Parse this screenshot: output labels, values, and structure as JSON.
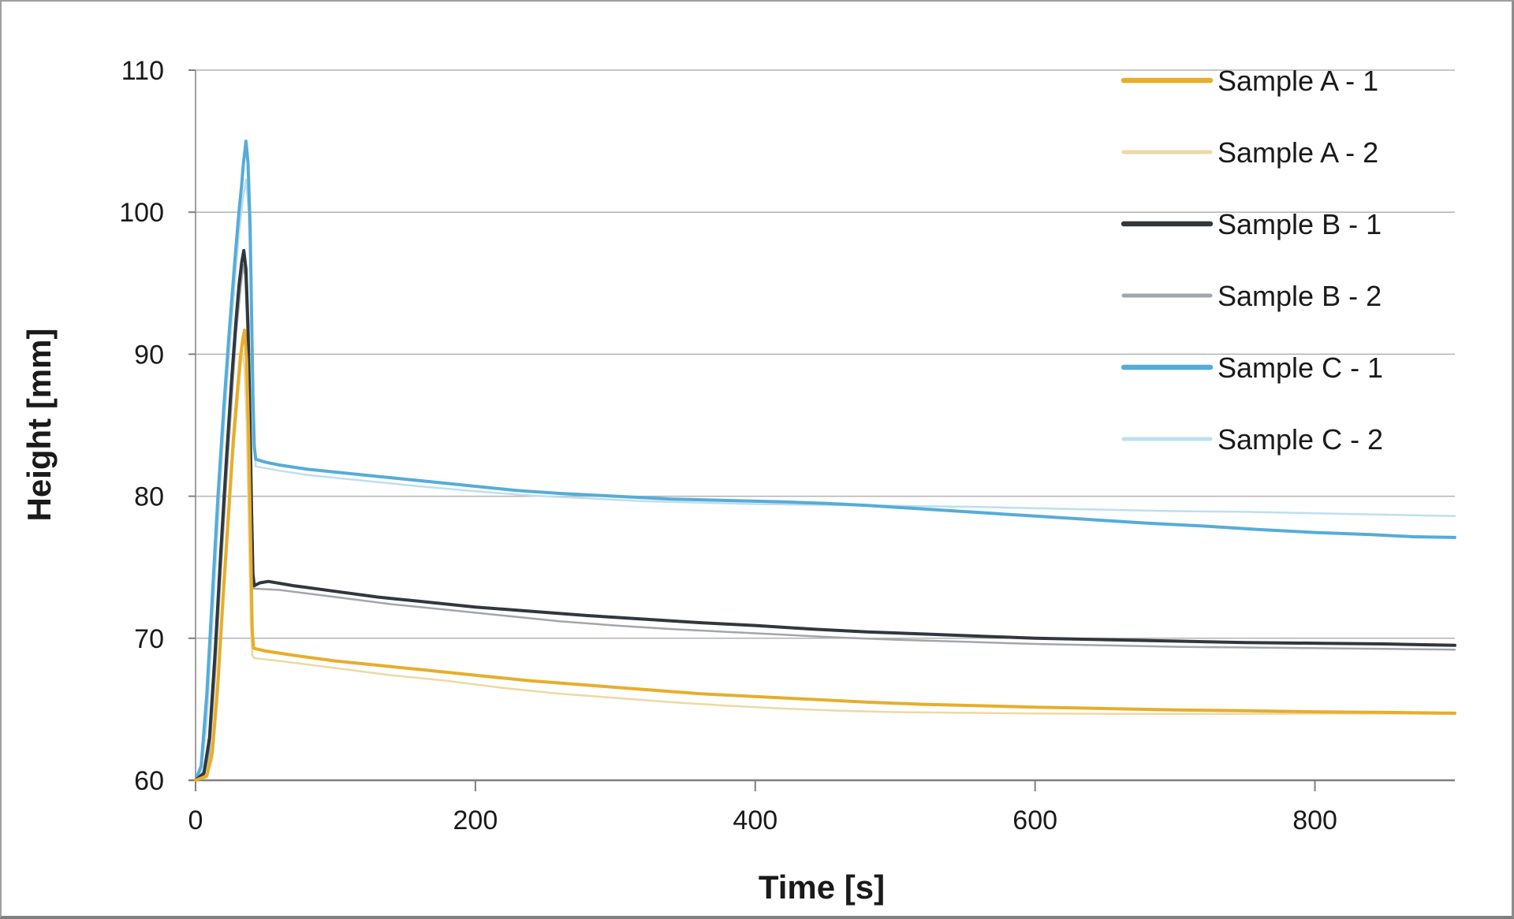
{
  "chart_data": {
    "type": "line",
    "title": "",
    "xlabel": "Time [s]",
    "ylabel": "Height [mm]",
    "xlim": [
      0,
      900
    ],
    "ylim": [
      60,
      110
    ],
    "xticks": [
      0,
      200,
      400,
      600,
      800
    ],
    "yticks": [
      60,
      70,
      80,
      90,
      100,
      110
    ],
    "grid": "horizontal",
    "legend_position": "top-right",
    "colors": {
      "gridline": "#b3b3b3",
      "axis_line": "#7f7f7f",
      "y_axis_line": "#a0a0a0",
      "text": "#1a1a1a"
    },
    "series": [
      {
        "name": "Sample A - 1",
        "color": "#e6ae2c",
        "width": 4,
        "points": [
          [
            0,
            60
          ],
          [
            8,
            60.3
          ],
          [
            12,
            62
          ],
          [
            16,
            67
          ],
          [
            20,
            73.5
          ],
          [
            24,
            79.5
          ],
          [
            27,
            84
          ],
          [
            30,
            87.5
          ],
          [
            32,
            89.8
          ],
          [
            34,
            91.2
          ],
          [
            35,
            91.7
          ],
          [
            36.5,
            89.5
          ],
          [
            38,
            84
          ],
          [
            39.5,
            76
          ],
          [
            40.5,
            70.5
          ],
          [
            41.5,
            69.3
          ],
          [
            50,
            69.1
          ],
          [
            70,
            68.8
          ],
          [
            100,
            68.4
          ],
          [
            130,
            68.1
          ],
          [
            160,
            67.8
          ],
          [
            200,
            67.4
          ],
          [
            240,
            67
          ],
          [
            280,
            66.7
          ],
          [
            320,
            66.4
          ],
          [
            360,
            66.1
          ],
          [
            400,
            65.9
          ],
          [
            440,
            65.7
          ],
          [
            480,
            65.5
          ],
          [
            520,
            65.35
          ],
          [
            560,
            65.25
          ],
          [
            600,
            65.15
          ],
          [
            650,
            65.05
          ],
          [
            700,
            64.95
          ],
          [
            750,
            64.9
          ],
          [
            800,
            64.82
          ],
          [
            850,
            64.78
          ],
          [
            900,
            64.72
          ]
        ]
      },
      {
        "name": "Sample A - 2",
        "color": "#edd9a3",
        "width": 2.5,
        "points": [
          [
            0,
            60
          ],
          [
            8,
            60.2
          ],
          [
            12,
            61.5
          ],
          [
            16,
            66
          ],
          [
            20,
            72.5
          ],
          [
            24,
            78.5
          ],
          [
            27,
            83
          ],
          [
            30,
            86.5
          ],
          [
            32,
            88.8
          ],
          [
            33.5,
            90.3
          ],
          [
            35,
            89
          ],
          [
            36.5,
            85
          ],
          [
            38,
            78
          ],
          [
            39.5,
            71
          ],
          [
            40.5,
            68.8
          ],
          [
            42,
            68.6
          ],
          [
            60,
            68.4
          ],
          [
            100,
            67.9
          ],
          [
            140,
            67.4
          ],
          [
            180,
            67
          ],
          [
            220,
            66.5
          ],
          [
            260,
            66.1
          ],
          [
            300,
            65.8
          ],
          [
            340,
            65.5
          ],
          [
            380,
            65.25
          ],
          [
            420,
            65.05
          ],
          [
            460,
            64.9
          ],
          [
            500,
            64.8
          ],
          [
            550,
            64.75
          ],
          [
            600,
            64.7
          ],
          [
            650,
            64.68
          ],
          [
            700,
            64.67
          ],
          [
            750,
            64.68
          ],
          [
            800,
            64.7
          ],
          [
            850,
            64.7
          ],
          [
            900,
            64.68
          ]
        ]
      },
      {
        "name": "Sample B - 1",
        "color": "#31373f",
        "width": 4,
        "points": [
          [
            0,
            60
          ],
          [
            6,
            60.5
          ],
          [
            10,
            63
          ],
          [
            14,
            69
          ],
          [
            18,
            76
          ],
          [
            22,
            82.5
          ],
          [
            26,
            88.5
          ],
          [
            29,
            92.5
          ],
          [
            31,
            94.8
          ],
          [
            33,
            96.5
          ],
          [
            34.5,
            97.3
          ],
          [
            36,
            96
          ],
          [
            37.5,
            92
          ],
          [
            39,
            85
          ],
          [
            40,
            79
          ],
          [
            41,
            74.5
          ],
          [
            42,
            73.7
          ],
          [
            46,
            73.9
          ],
          [
            52,
            74
          ],
          [
            70,
            73.7
          ],
          [
            100,
            73.3
          ],
          [
            130,
            72.9
          ],
          [
            160,
            72.6
          ],
          [
            200,
            72.2
          ],
          [
            240,
            71.9
          ],
          [
            280,
            71.6
          ],
          [
            320,
            71.35
          ],
          [
            360,
            71.1
          ],
          [
            400,
            70.9
          ],
          [
            440,
            70.65
          ],
          [
            480,
            70.45
          ],
          [
            520,
            70.3
          ],
          [
            560,
            70.15
          ],
          [
            600,
            70
          ],
          [
            650,
            69.9
          ],
          [
            700,
            69.8
          ],
          [
            750,
            69.7
          ],
          [
            800,
            69.65
          ],
          [
            850,
            69.6
          ],
          [
            900,
            69.5
          ]
        ]
      },
      {
        "name": "Sample B - 2",
        "color": "#a2a6ab",
        "width": 2.5,
        "points": [
          [
            0,
            60
          ],
          [
            6,
            60.3
          ],
          [
            10,
            62
          ],
          [
            14,
            67.5
          ],
          [
            18,
            74.5
          ],
          [
            22,
            81
          ],
          [
            26,
            87
          ],
          [
            29,
            91.5
          ],
          [
            32,
            94.5
          ],
          [
            34,
            96.3
          ],
          [
            35.5,
            95.5
          ],
          [
            37,
            91.5
          ],
          [
            38.5,
            84.5
          ],
          [
            39.5,
            78.5
          ],
          [
            40.5,
            74.2
          ],
          [
            41.5,
            73.5
          ],
          [
            60,
            73.4
          ],
          [
            100,
            72.9
          ],
          [
            140,
            72.4
          ],
          [
            180,
            72
          ],
          [
            220,
            71.6
          ],
          [
            260,
            71.2
          ],
          [
            300,
            70.9
          ],
          [
            340,
            70.65
          ],
          [
            380,
            70.45
          ],
          [
            420,
            70.25
          ],
          [
            460,
            70.05
          ],
          [
            500,
            69.9
          ],
          [
            550,
            69.75
          ],
          [
            600,
            69.6
          ],
          [
            650,
            69.5
          ],
          [
            700,
            69.4
          ],
          [
            750,
            69.35
          ],
          [
            800,
            69.3
          ],
          [
            850,
            69.25
          ],
          [
            900,
            69.2
          ]
        ]
      },
      {
        "name": "Sample C - 1",
        "color": "#56acd8",
        "width": 4,
        "points": [
          [
            0,
            60
          ],
          [
            4,
            61
          ],
          [
            8,
            66
          ],
          [
            12,
            73
          ],
          [
            16,
            80
          ],
          [
            20,
            86
          ],
          [
            24,
            91.5
          ],
          [
            28,
            96.5
          ],
          [
            31,
            100
          ],
          [
            33,
            102
          ],
          [
            34,
            103.2
          ],
          [
            36,
            105
          ],
          [
            37.5,
            103.5
          ],
          [
            39,
            99
          ],
          [
            40,
            93
          ],
          [
            41,
            87
          ],
          [
            42,
            83.5
          ],
          [
            43,
            82.6
          ],
          [
            50,
            82.4
          ],
          [
            60,
            82.2
          ],
          [
            80,
            81.9
          ],
          [
            100,
            81.7
          ],
          [
            120,
            81.5
          ],
          [
            150,
            81.2
          ],
          [
            180,
            80.9
          ],
          [
            200,
            80.7
          ],
          [
            230,
            80.4
          ],
          [
            260,
            80.2
          ],
          [
            300,
            80
          ],
          [
            340,
            79.8
          ],
          [
            380,
            79.7
          ],
          [
            420,
            79.6
          ],
          [
            450,
            79.5
          ],
          [
            480,
            79.35
          ],
          [
            520,
            79.1
          ],
          [
            560,
            78.85
          ],
          [
            600,
            78.6
          ],
          [
            640,
            78.35
          ],
          [
            680,
            78.1
          ],
          [
            720,
            77.9
          ],
          [
            760,
            77.65
          ],
          [
            800,
            77.45
          ],
          [
            840,
            77.3
          ],
          [
            870,
            77.15
          ],
          [
            900,
            77.1
          ]
        ]
      },
      {
        "name": "Sample C - 2",
        "color": "#bcdff0",
        "width": 2.5,
        "points": [
          [
            0,
            60
          ],
          [
            4,
            60.5
          ],
          [
            8,
            64
          ],
          [
            12,
            71
          ],
          [
            16,
            78
          ],
          [
            20,
            84.5
          ],
          [
            24,
            90
          ],
          [
            28,
            95
          ],
          [
            31,
            98.5
          ],
          [
            34,
            101
          ],
          [
            36,
            102.3
          ],
          [
            38,
            100
          ],
          [
            39.5,
            95
          ],
          [
            40.5,
            89
          ],
          [
            41.5,
            84
          ],
          [
            43,
            82.1
          ],
          [
            60,
            81.8
          ],
          [
            80,
            81.5
          ],
          [
            100,
            81.3
          ],
          [
            130,
            81
          ],
          [
            160,
            80.7
          ],
          [
            200,
            80.35
          ],
          [
            240,
            80.05
          ],
          [
            280,
            79.85
          ],
          [
            320,
            79.65
          ],
          [
            360,
            79.55
          ],
          [
            400,
            79.45
          ],
          [
            440,
            79.4
          ],
          [
            480,
            79.35
          ],
          [
            520,
            79.3
          ],
          [
            560,
            79.25
          ],
          [
            600,
            79.15
          ],
          [
            650,
            79.05
          ],
          [
            700,
            78.95
          ],
          [
            750,
            78.9
          ],
          [
            800,
            78.8
          ],
          [
            850,
            78.7
          ],
          [
            900,
            78.6
          ]
        ]
      }
    ]
  }
}
